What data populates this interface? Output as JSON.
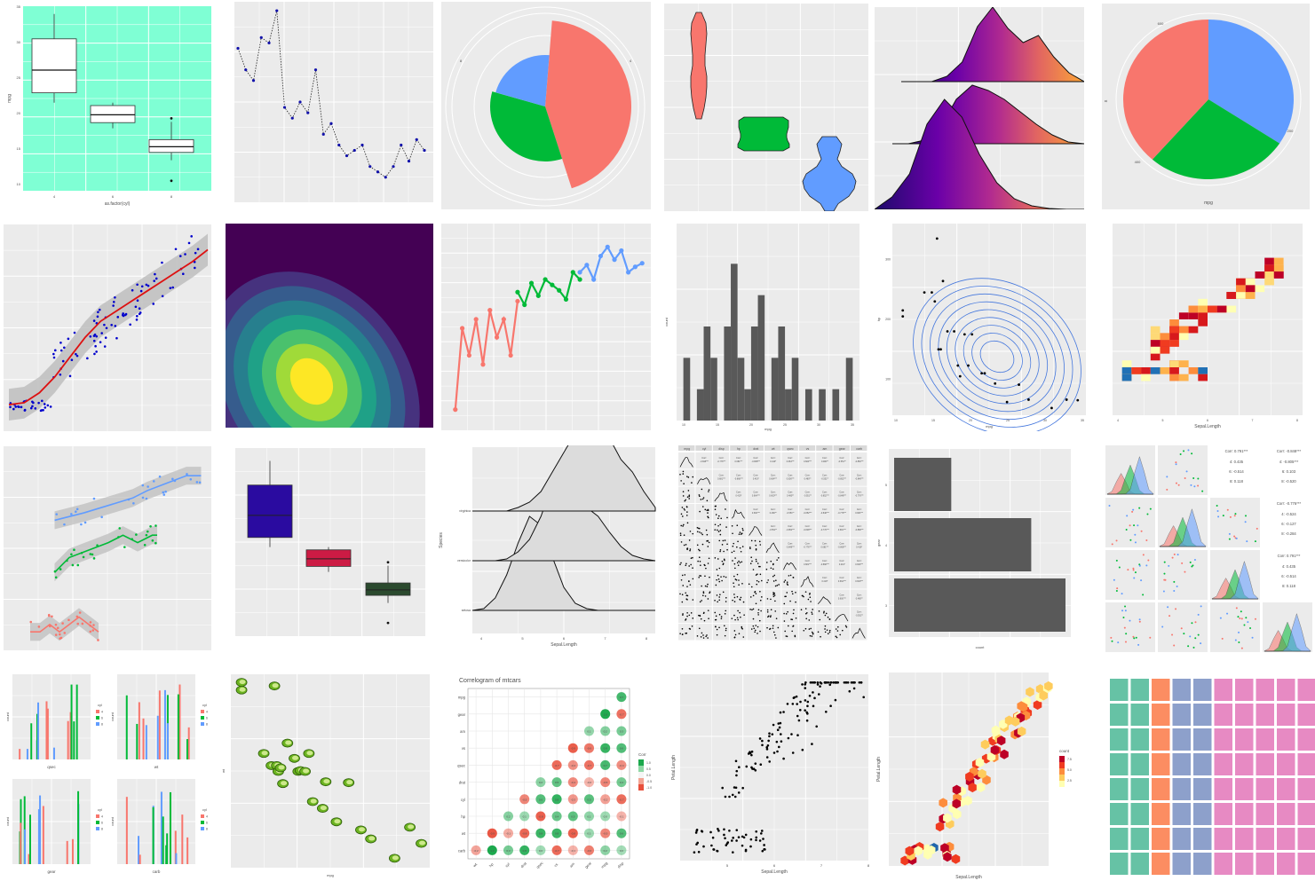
{
  "colors": {
    "ggplot_panel": "#ebebeb",
    "aquamarine": "#7fffd4",
    "hue_red": "#f8766d",
    "hue_green": "#00ba38",
    "hue_blue": "#619cff",
    "point_blue": "#0000cc",
    "smooth_red": "#dd1111",
    "dark_bar": "#595959"
  },
  "chart_data": [
    {
      "id": "boxplot_mpg_cyl",
      "type": "box",
      "xlabel": "as.factor(cyl)",
      "ylabel": "mpg",
      "categories": [
        "4",
        "6",
        "8"
      ],
      "boxes": [
        {
          "min": 21.4,
          "q1": 22.8,
          "median": 26,
          "q3": 30.4,
          "max": 33.9
        },
        {
          "min": 17.8,
          "q1": 18.6,
          "median": 19.7,
          "q3": 21,
          "max": 21.4
        },
        {
          "min": 13.3,
          "q1": 14.4,
          "median": 15.2,
          "q3": 16.2,
          "max": 18.7,
          "outliers": [
            10.4,
            19.2
          ]
        }
      ],
      "ylim": [
        9,
        35
      ],
      "y_ticks": [
        "10",
        "15",
        "20",
        "25",
        "30",
        "35"
      ]
    },
    {
      "id": "connected_points_dotted",
      "type": "line",
      "x": [
        1,
        2,
        3,
        4,
        5,
        6,
        7,
        8,
        9,
        10,
        11,
        12,
        13,
        14,
        15,
        16,
        17,
        18,
        19,
        20,
        21,
        22,
        23,
        24,
        25
      ],
      "y": [
        28,
        24,
        22,
        30,
        29,
        35,
        17,
        15,
        18,
        16,
        24,
        12,
        14,
        10,
        8,
        9,
        10,
        6,
        5,
        4,
        6,
        10,
        7,
        11,
        9
      ],
      "ylim": [
        0,
        36
      ]
    },
    {
      "id": "coxcomb_polar_bar",
      "type": "pie",
      "categories": [
        "a",
        "b",
        "c"
      ],
      "values": [
        14,
        11,
        7
      ],
      "colors": [
        "#f8766d",
        "#00ba38",
        "#619cff"
      ],
      "tick_labels": [
        "8",
        "4"
      ]
    },
    {
      "id": "violin_three_groups",
      "type": "violin",
      "categories": [
        "1",
        "2",
        "3"
      ],
      "xlabel": "mpg"
    },
    {
      "id": "ridgeline_gradient",
      "type": "area",
      "series": [
        {
          "values": [
            0,
            2,
            8,
            24,
            40,
            30,
            22,
            26,
            12,
            4,
            0
          ]
        },
        {
          "values": [
            0,
            4,
            16,
            40,
            56,
            58,
            44,
            30,
            14,
            5,
            0
          ]
        },
        {
          "values": [
            0,
            6,
            28,
            70,
            96,
            80,
            46,
            22,
            8,
            2,
            0
          ]
        }
      ]
    },
    {
      "id": "pie_mpg",
      "type": "pie",
      "values": [
        135,
        95,
        120
      ],
      "colors": [
        "#f8766d",
        "#00ba38",
        "#619cff"
      ],
      "xlabel": "mpg",
      "ylabel": "x",
      "tick_labels": [
        "400",
        "600",
        "200"
      ]
    },
    {
      "id": "scatter_with_smooth",
      "type": "scatter",
      "x": [
        4,
        5,
        5,
        6,
        7,
        8,
        9,
        10,
        12,
        13,
        14,
        15,
        16,
        17,
        18,
        19,
        20,
        21,
        22,
        24,
        26,
        27,
        28,
        30,
        32,
        34,
        36,
        38,
        40,
        42
      ],
      "y": [
        1,
        1.5,
        2,
        2,
        1,
        2,
        1.5,
        2,
        3,
        3.5,
        4.2,
        4.6,
        5,
        4.4,
        5.3,
        5.8,
        5.1,
        6.2,
        5.6,
        6.0,
        6.8,
        7.1,
        6.5,
        7.4,
        7.0,
        7.9,
        8.2,
        7.6,
        8.8,
        8.5
      ],
      "smooth": [
        1.2,
        1.3,
        1.8,
        2.6,
        3.6,
        4.6,
        5.4,
        5.9,
        6.4,
        6.9,
        7.4,
        7.9,
        8.4,
        9.0
      ],
      "xlim": [
        0,
        45
      ],
      "ylim": [
        0,
        10
      ]
    },
    {
      "id": "density_filled_viridis",
      "type": "heatmap"
    },
    {
      "id": "grouped_lines_points",
      "type": "line",
      "series": [
        {
          "color": "#f8766d",
          "x": [
            3,
            4,
            5,
            6,
            7,
            8,
            9,
            10,
            11,
            12
          ],
          "y": [
            1,
            5.5,
            4,
            6,
            3.5,
            6.5,
            5,
            6,
            4,
            7
          ]
        },
        {
          "color": "#00ba38",
          "x": [
            12,
            13,
            14,
            15,
            16,
            17,
            18,
            19,
            20,
            21
          ],
          "y": [
            7.5,
            6.8,
            8,
            7.3,
            8.2,
            7.9,
            7.6,
            7.1,
            8.6,
            8.2
          ]
        },
        {
          "color": "#619cff",
          "x": [
            21,
            22,
            23,
            24,
            25,
            26,
            27,
            28,
            29,
            30
          ],
          "y": [
            8.6,
            9,
            8.2,
            9.5,
            10,
            9.3,
            9.8,
            8.6,
            8.9,
            9.1
          ]
        }
      ],
      "ylim": [
        0,
        11
      ]
    },
    {
      "id": "histogram_mpg",
      "type": "bar",
      "xlabel": "mpg",
      "ylabel": "count",
      "x_ticks": [
        "10",
        "15",
        "20",
        "25",
        "30",
        "35"
      ],
      "values": [
        2,
        0,
        1,
        3,
        2,
        0,
        3,
        5,
        2,
        1,
        3,
        4,
        0,
        2,
        3,
        1,
        2,
        0,
        1,
        0,
        1,
        0,
        1,
        0,
        2
      ],
      "ylim": [
        0,
        6
      ]
    },
    {
      "id": "contour_scatter",
      "type": "scatter",
      "xlabel": "mpg",
      "ylabel": "hp",
      "x_ticks": [
        "10",
        "15",
        "20",
        "25",
        "30",
        "35"
      ],
      "y_ticks": [
        "100",
        "200",
        "300"
      ],
      "x": [
        10.4,
        10.4,
        13.3,
        14.3,
        14.7,
        15,
        15.2,
        15.5,
        15.8,
        16.4,
        17.3,
        17.8,
        18.1,
        18.7,
        19.2,
        19.7,
        21,
        21.4,
        22.8,
        24.4,
        26,
        27.3,
        30.4,
        32.4,
        33.9
      ],
      "y": [
        205,
        215,
        245,
        245,
        230,
        335,
        150,
        150,
        264,
        180,
        180,
        123,
        105,
        175,
        123,
        175,
        110,
        110,
        93,
        62,
        91,
        66,
        52,
        66,
        65
      ],
      "xlim": [
        9,
        35
      ],
      "ylim": [
        40,
        360
      ]
    },
    {
      "id": "heatmap_bins_sepal",
      "type": "heatmap",
      "xlabel": "Sepal.Length",
      "x_ticks": [
        "4",
        "5",
        "6",
        "7",
        "8"
      ]
    },
    {
      "id": "scatter_three_smooths",
      "type": "scatter",
      "series": [
        {
          "color": "#f8766d",
          "x": [
            4.4,
            4.6,
            4.8,
            5,
            5.2,
            5.4,
            5.6,
            5.8
          ],
          "y": [
            0.2,
            0.2,
            0.3,
            0.2,
            0.3,
            0.4,
            0.3,
            0.2
          ]
        },
        {
          "color": "#00ba38",
          "x": [
            4.9,
            5.2,
            5.6,
            6,
            6.3,
            6.6,
            6.9,
            7
          ],
          "y": [
            1,
            1.2,
            1.3,
            1.4,
            1.5,
            1.4,
            1.5,
            1.5
          ]
        },
        {
          "color": "#619cff",
          "x": [
            4.9,
            5.5,
            6,
            6.5,
            6.8,
            7.2,
            7.6,
            7.9
          ],
          "y": [
            1.7,
            1.8,
            1.9,
            2,
            2.1,
            2.2,
            2.3,
            2.3
          ]
        }
      ],
      "ylim": [
        0,
        2.6
      ],
      "xlim": [
        4,
        8
      ]
    },
    {
      "id": "boxplot_fill_colors",
      "type": "box",
      "colors": [
        "#2a0ba0",
        "#cc1b44",
        "#2b4a2e"
      ],
      "boxes": [
        {
          "min": 21.4,
          "q1": 22.8,
          "median": 26,
          "q3": 30.4,
          "max": 33.9
        },
        {
          "min": 17.8,
          "q1": 18.6,
          "median": 19.7,
          "q3": 21,
          "max": 21.4
        },
        {
          "min": 13.3,
          "q1": 14.4,
          "median": 15.2,
          "q3": 16.2,
          "max": 18.7,
          "outliers": [
            10.4,
            19.2
          ]
        }
      ],
      "ylim": [
        9,
        35
      ]
    },
    {
      "id": "ridges_species",
      "type": "area",
      "xlabel": "Sepal.Length",
      "ylabel": "Species",
      "categories": [
        "setosa",
        "versicolor",
        "virginica"
      ],
      "x_ticks": [
        "4",
        "5",
        "6",
        "7",
        "8"
      ]
    },
    {
      "id": "scatter_matrix_mtcars",
      "type": "table",
      "headers": [
        "mpg",
        "cyl",
        "disp",
        "hp",
        "drat",
        "wt",
        "qsec",
        "vs",
        "am",
        "gear",
        "carb"
      ],
      "corr_labels": [
        "-0.852***",
        "-0.848***",
        "-0.776***",
        "0.681***",
        "-0.868***",
        "0.419*",
        "0.664***",
        "0.600***",
        "0.480**",
        "-0.551**"
      ]
    },
    {
      "id": "horizontal_bar_gear",
      "type": "bar",
      "ylabel": "gear",
      "xlabel": "count",
      "categories": [
        "5",
        "4",
        "3"
      ],
      "values": [
        5,
        12,
        15
      ],
      "xlim": [
        0,
        15
      ]
    },
    {
      "id": "pairs_iris",
      "type": "table",
      "corr_labels": [
        {
          "title": "Corr: -0.848***",
          "groups": [
            "4: -0.805***",
            "6: 0.103",
            "8: -0.520"
          ]
        },
        {
          "title": "Corr: -0.776***",
          "groups": [
            "4: -0.524",
            "6: -0.127",
            "8: -0.284"
          ]
        },
        {
          "title": "Corr: 0.791***",
          "groups": [
            "4: 0.435",
            "6: -0.514",
            "8: 0.118"
          ]
        }
      ]
    },
    {
      "id": "faceted_histograms_cyl",
      "type": "bar",
      "facets": [
        {
          "xlabel": "qsec",
          "ylabel": "count"
        },
        {
          "xlabel": "wt",
          "ylabel": "count"
        },
        {
          "xlabel": "gear",
          "ylabel": "count"
        },
        {
          "xlabel": "carb",
          "ylabel": "count"
        }
      ],
      "legend_title": "cyl",
      "legend_labels": [
        "4",
        "6",
        "8"
      ]
    },
    {
      "id": "lime_image_scatter",
      "type": "scatter",
      "xlabel": "mpg",
      "ylabel": "wt",
      "x": [
        10.4,
        10.4,
        13.3,
        14.3,
        14.7,
        15,
        15.2,
        15.5,
        15.8,
        16.4,
        17.3,
        17.8,
        18.1,
        18.7,
        19.2,
        19.7,
        21,
        21.4,
        22.8,
        24.4,
        26,
        27.3,
        30.4,
        32.4,
        33.9
      ],
      "y": [
        5.25,
        5.42,
        3.84,
        3.57,
        5.34,
        3.57,
        3.44,
        3.52,
        3.17,
        4.07,
        3.73,
        3.44,
        3.46,
        3.44,
        3.84,
        2.77,
        2.62,
        3.21,
        2.32,
        3.19,
        2.14,
        1.94,
        1.51,
        2.2,
        1.84
      ],
      "xlim": [
        9,
        35
      ],
      "ylim": [
        1.3,
        5.6
      ]
    },
    {
      "id": "correlogram_mtcars",
      "type": "heatmap",
      "title": "Correlogram of mtcars",
      "rows": [
        "mpg",
        "gear",
        "am",
        "vs",
        "qsec",
        "drat",
        "cyl",
        "hp",
        "wt",
        "carb"
      ],
      "cols": [
        "wt",
        "hp",
        "cyl",
        "drat",
        "qsec",
        "vs",
        "am",
        "gear",
        "mpg",
        "disp"
      ],
      "legend_title": "Corr",
      "legend_labels": [
        "1.0",
        "0.5",
        "0.0",
        "-0.5",
        "-1.0"
      ]
    },
    {
      "id": "scatter_iris",
      "type": "scatter",
      "xlabel": "Sepal.Length",
      "ylabel": "Petal.Length",
      "x_ticks": [
        "5",
        "6",
        "7",
        "8"
      ],
      "x": [
        4.3,
        4.5,
        4.7,
        4.8,
        5,
        5.1,
        5.2,
        5.4,
        5.5,
        5.7,
        5.8,
        4.9,
        5.6,
        6,
        6.2,
        6.4,
        6.6,
        6.8,
        5.9,
        6.1,
        6.3,
        6.5,
        6.7,
        6.9,
        7.1,
        7.3,
        7.6,
        7.7,
        7.9,
        7.2
      ],
      "y": [
        1.1,
        1.3,
        1.6,
        1.9,
        1.4,
        1.5,
        1.5,
        1.7,
        1.3,
        1.5,
        1.2,
        3.3,
        3.9,
        4.5,
        4.3,
        4.5,
        4.6,
        4.8,
        4.2,
        4.7,
        5,
        5.1,
        5.6,
        5.4,
        5.9,
        6.3,
        6.6,
        6.7,
        6.4,
        6.1
      ],
      "xlim": [
        4,
        8
      ],
      "ylim": [
        1,
        7
      ]
    },
    {
      "id": "hexbin_iris",
      "type": "heatmap",
      "xlabel": "Sepal.Length",
      "ylabel": "Petal.Length",
      "legend_title": "count",
      "legend_labels": [
        "7.5",
        "5.0",
        "2.5"
      ]
    },
    {
      "id": "waffle_chart",
      "type": "heatmap",
      "cols": 10,
      "rows": 8,
      "column_colors": [
        "#66c2a5",
        "#66c2a5",
        "#fc8d62",
        "#8da0cb",
        "#8da0cb",
        "#e78ac3",
        "#e78ac3",
        "#e78ac3",
        "#e78ac3",
        "#e78ac3"
      ]
    }
  ]
}
